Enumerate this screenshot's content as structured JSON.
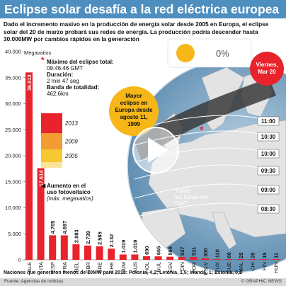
{
  "header": {
    "title": "Eclipse solar desafía a la red eléctrica europea",
    "subtitle": "Dado el incremento masivo en la producción de energía solar desde 2005 en Europa, el eclipse solar del 20 de marzo probará sus redes de energía. La producción podría descender hasta 30.000MW por cambios rápidos en la generación"
  },
  "chart_data": {
    "type": "bar",
    "ylabel": "Megavatios",
    "ylim": [
      0,
      40000
    ],
    "yticks": [
      "0",
      "5.000",
      "10.000",
      "15.000",
      "20.000",
      "25.000",
      "30.000",
      "35.000",
      "40.000"
    ],
    "categories": [
      "ALE",
      "ITA",
      "ESP",
      "FRA",
      "BEL",
      "GBR",
      "GRE",
      "CHE",
      "RUM",
      "AUS",
      "HOL",
      "BUL",
      "ESV",
      "DIN",
      "POR",
      "ESLV",
      "LUX",
      "SUE",
      "MAL",
      "CHI",
      "FIN",
      "HUN"
    ],
    "values": [
      36013,
      17614,
      4705,
      4697,
      2983,
      2739,
      2585,
      2132,
      1019,
      1019,
      690,
      665,
      590,
      537,
      531,
      300,
      110,
      60,
      25,
      20,
      15,
      11
    ],
    "labels": [
      "36.013",
      "17.614",
      "4.705",
      "4.697",
      "2.983",
      "2.739",
      "2.585",
      "2.132",
      "1.019",
      "1.019",
      "690",
      "665",
      "590",
      "537",
      "531",
      "300",
      "110",
      "60",
      "25",
      "20",
      "15",
      "11"
    ],
    "series": [
      {
        "name": "2005",
        "color": "#f7c832"
      },
      {
        "name": "2009",
        "color": "#f39c34"
      },
      {
        "name": "2013",
        "color": "#e8232b"
      }
    ],
    "legend_note": "Aumento en el uso fotovoltaico",
    "legend_note_sub": "(máx. megavatios)"
  },
  "eclipse_info": {
    "max_label": "Máximo del eclipse total:",
    "max_value": "09:46:46 GMT",
    "duration_label": "Duración:",
    "duration_value": "2 min 47 seg",
    "band_label": "Banda de totalidad:",
    "band_value": "462,6km"
  },
  "map": {
    "callout": "Mayor eclipse en Europa desde agosto 11, 1999",
    "date_badge": "Viernes, Mar 20",
    "sun_percent": "0%",
    "times_note": "Todas las horas son GMT",
    "times": [
      "11:00",
      "10:30",
      "10:00",
      "09:30",
      "09:00",
      "08:30"
    ]
  },
  "footer": {
    "note": "Naciones que generaron menos de 10MW para 2013: Polonia, 4,2; Letonia, 1,5; Irlanda, 1; Estonia, 0,2",
    "source": "Fuente: Agencias de noticias",
    "brand": "© GRAPHIC NEWS"
  },
  "colors": {
    "title_bg": "#4f8fbf",
    "accent_red": "#e8232b",
    "callout": "#f7b718",
    "sea": "#6e9dbd"
  }
}
